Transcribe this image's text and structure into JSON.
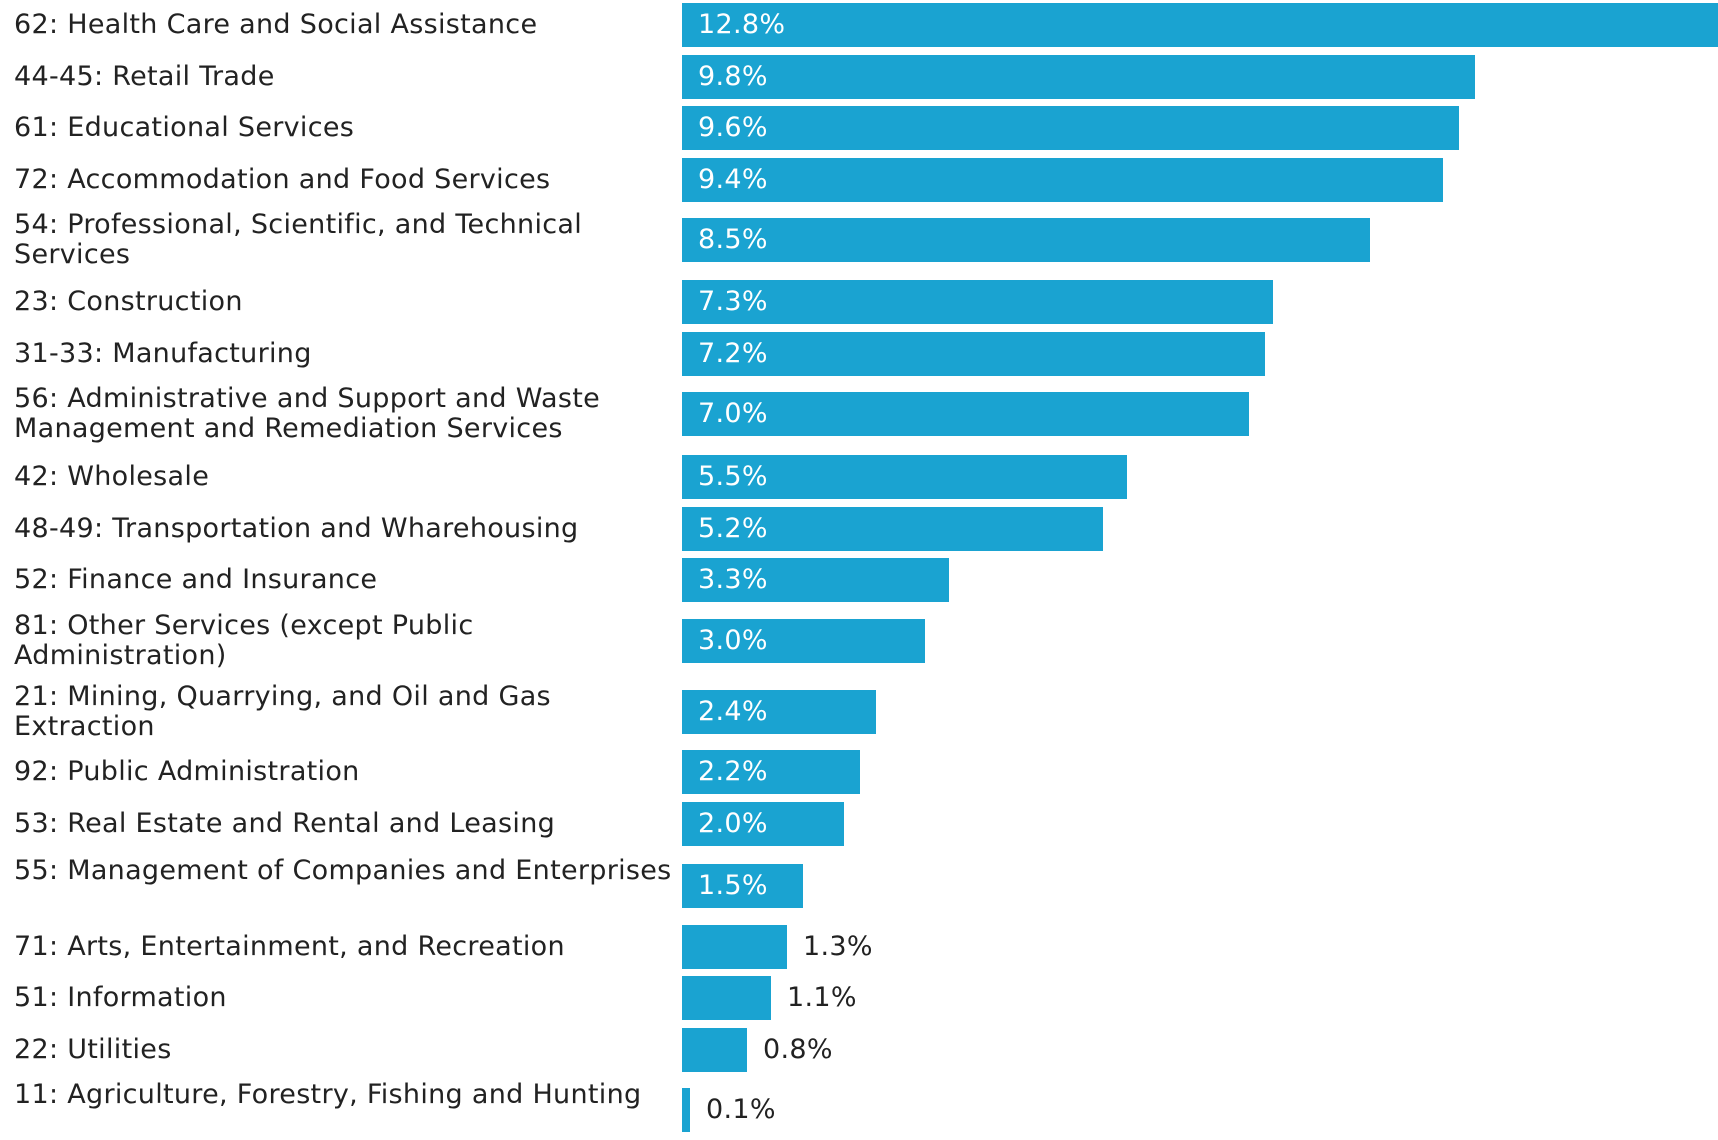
{
  "chart_data": {
    "type": "bar",
    "orientation": "horizontal",
    "title": "",
    "xlabel": "",
    "ylabel": "",
    "xlim": [
      0,
      12.8
    ],
    "grid": false,
    "legend": "none",
    "colors": {
      "bar": "#1aa3d1",
      "label_inside": "#ffffff",
      "label_outside": "#222222",
      "category_text": "#222222"
    },
    "categories": [
      "62: Health Care and Social Assistance",
      "44-45: Retail Trade",
      "61: Educational Services",
      "72: Accommodation and Food Services",
      "54: Professional, Scientific, and Technical Services",
      "23: Construction",
      "31-33: Manufacturing",
      "56: Administrative and Support and Waste Management and Remediation Services",
      "42: Wholesale",
      "48-49: Transportation and Wharehousing",
      "52: Finance and Insurance",
      "81: Other Services (except Public Administration)",
      "21: Mining, Quarrying, and Oil and Gas Extraction",
      "92: Public Administration",
      "53: Real Estate and Rental and Leasing",
      "55: Management of Companies and Enterprises",
      "71: Arts, Entertainment, and Recreation",
      "51: Information",
      "22: Utilities",
      "11: Agriculture, Forestry, Fishing and Hunting"
    ],
    "values": [
      12.8,
      9.8,
      9.6,
      9.4,
      8.5,
      7.3,
      7.2,
      7.0,
      5.5,
      5.2,
      3.3,
      3.0,
      2.4,
      2.2,
      2.0,
      1.5,
      1.3,
      1.1,
      0.8,
      0.1
    ],
    "value_labels": [
      "12.8%",
      "9.8%",
      "9.6%",
      "9.4%",
      "8.5%",
      "7.3%",
      "7.2%",
      "7.0%",
      "5.5%",
      "5.2%",
      "3.3%",
      "3.0%",
      "2.4%",
      "2.2%",
      "2.0%",
      "1.5%",
      "1.3%",
      "1.1%",
      "0.8%",
      "0.1%"
    ]
  }
}
